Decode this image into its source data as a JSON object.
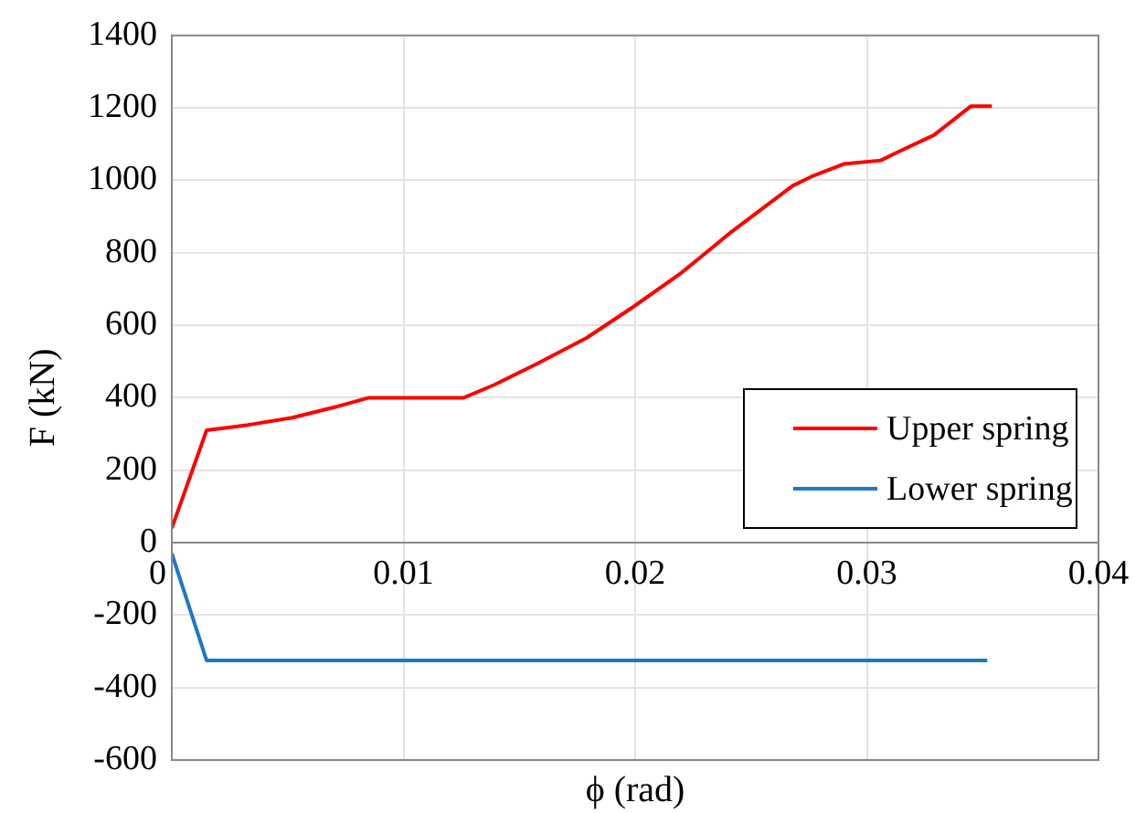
{
  "chart_data": {
    "type": "line",
    "xlabel": "ϕ (rad)",
    "ylabel": "F (kN)",
    "xlim": [
      0,
      0.04
    ],
    "xticks": [
      0,
      0.01,
      0.02,
      0.03,
      0.04
    ],
    "ylim": [
      -600,
      1400
    ],
    "yticks": [
      -600,
      -400,
      -200,
      0,
      200,
      400,
      600,
      800,
      1000,
      1200,
      1400
    ],
    "grid": true,
    "legend": "bottom right",
    "marker": "none",
    "line_style": "solid",
    "series": [
      {
        "name": "Upper spring",
        "color": "#ff0000",
        "x": [
          0,
          0.0015,
          0.0033,
          0.0052,
          0.0071,
          0.0085,
          0.0126,
          0.0139,
          0.0158,
          0.0179,
          0.0199,
          0.022,
          0.0241,
          0.0268,
          0.0276,
          0.029,
          0.0306,
          0.0314,
          0.0329,
          0.0345,
          0.0354
        ],
        "values": [
          40,
          310,
          325,
          345,
          375,
          400,
          400,
          435,
          495,
          565,
          650,
          745,
          855,
          985,
          1010,
          1045,
          1055,
          1080,
          1125,
          1205,
          1205
        ]
      },
      {
        "name": "Lower spring",
        "color": "#1f77c4",
        "x": [
          0,
          0.0015,
          0.0352
        ],
        "values": [
          -30,
          -325,
          -325
        ]
      }
    ]
  }
}
